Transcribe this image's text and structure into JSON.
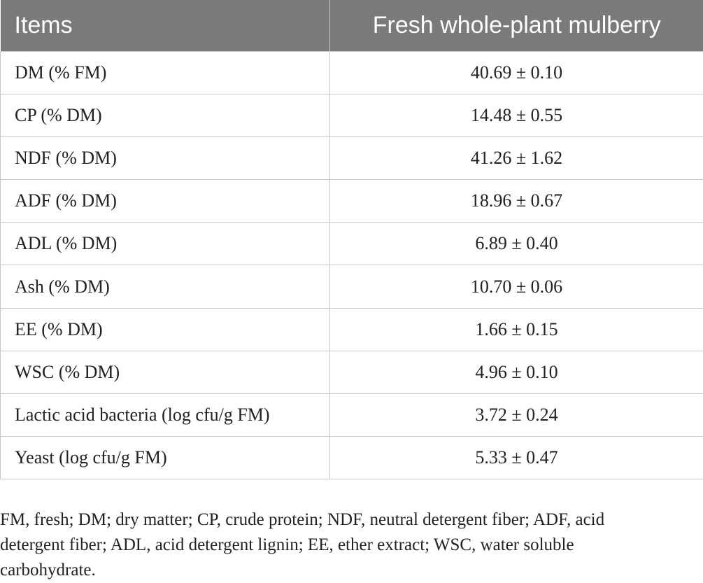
{
  "table": {
    "headers": [
      "Items",
      "Fresh whole-plant mulberry"
    ],
    "rows": [
      {
        "item": "DM (% FM)",
        "value": "40.69 ± 0.10"
      },
      {
        "item": "CP (% DM)",
        "value": "14.48 ± 0.55"
      },
      {
        "item": "NDF (% DM)",
        "value": "41.26 ± 1.62"
      },
      {
        "item": "ADF (% DM)",
        "value": "18.96 ± 0.67"
      },
      {
        "item": "ADL (% DM)",
        "value": "6.89 ± 0.40"
      },
      {
        "item": "Ash (% DM)",
        "value": "10.70 ± 0.06"
      },
      {
        "item": "EE (% DM)",
        "value": "1.66 ± 0.15"
      },
      {
        "item": "WSC (% DM)",
        "value": "4.96 ± 0.10"
      },
      {
        "item": "Lactic acid bacteria (log cfu/g FM)",
        "value": "3.72 ± 0.24"
      },
      {
        "item": "Yeast (log cfu/g FM)",
        "value": "5.33 ± 0.47"
      }
    ]
  },
  "footnote": "FM, fresh; DM; dry matter; CP, crude protein; NDF, neutral detergent fiber; ADF, acid detergent fiber; ADL, acid detergent lignin; EE, ether extract; WSC, water soluble carbohydrate.",
  "colors": {
    "header_bg": "#7a7a7a",
    "header_text": "#ffffff",
    "border": "#c8c8c8",
    "body_text": "#222222"
  }
}
